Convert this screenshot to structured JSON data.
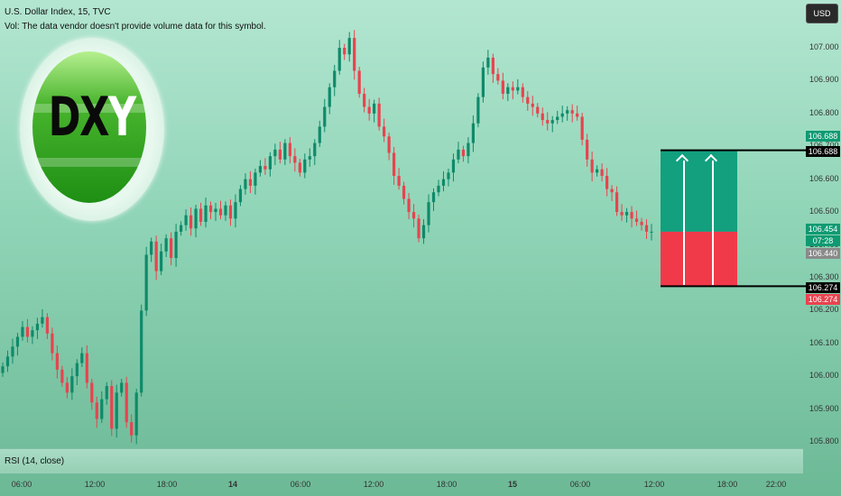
{
  "header": {
    "symbol_line": "U.S. Dollar Index, 15, TVC",
    "volume_note": "Vol: The data vendor doesn't provide volume data for this symbol."
  },
  "currency_button": "USD",
  "logo": {
    "letters": [
      "D",
      "X",
      "Y"
    ]
  },
  "rsi": {
    "label": "RSI (14, close)"
  },
  "price_tags": {
    "target_top": "106.688",
    "target": "106.688",
    "last": "106.454",
    "countdown": "07:28",
    "current": "106.440",
    "stop": "106.274",
    "stop_bottom": "106.274"
  },
  "colors": {
    "up": "#0f8a6a",
    "down": "#e8434f",
    "target_zone": "#12a07f",
    "stop_zone": "#f03a4a"
  },
  "chart_data": {
    "type": "candlestick",
    "y_ticks": [
      "107.000",
      "106.900",
      "106.800",
      "106.700",
      "106.600",
      "106.500",
      "106.400",
      "106.300",
      "106.200",
      "106.100",
      "106.000",
      "105.900",
      "105.800"
    ],
    "x_ticks": [
      "06:00",
      "12:00",
      "18:00",
      "14",
      "06:00",
      "12:00",
      "18:00",
      "15",
      "06:00",
      "12:00",
      "18:00",
      "22:00"
    ],
    "ylim": [
      105.8,
      107.05
    ],
    "position": {
      "target": 106.688,
      "entry": 106.44,
      "stop": 106.274
    },
    "close": [
      106.03,
      106.06,
      106.09,
      106.12,
      106.15,
      106.12,
      106.14,
      106.16,
      106.18,
      106.13,
      106.07,
      106.02,
      105.98,
      105.95,
      106.0,
      106.04,
      106.07,
      105.98,
      105.92,
      105.87,
      105.93,
      105.97,
      105.84,
      105.95,
      105.98,
      105.86,
      105.82,
      105.95,
      106.2,
      106.37,
      106.41,
      106.32,
      106.38,
      106.42,
      106.36,
      106.44,
      106.46,
      106.49,
      106.45,
      106.51,
      106.47,
      106.52,
      106.5,
      106.51,
      106.49,
      106.52,
      106.48,
      106.53,
      106.57,
      106.6,
      106.58,
      106.62,
      106.64,
      106.63,
      106.67,
      106.69,
      106.66,
      106.71,
      106.67,
      106.65,
      106.62,
      106.66,
      106.67,
      106.71,
      106.76,
      106.82,
      106.88,
      106.93,
      107.0,
      106.98,
      107.03,
      106.93,
      106.86,
      106.82,
      106.8,
      106.83,
      106.76,
      106.73,
      106.68,
      106.61,
      106.58,
      106.54,
      106.5,
      106.48,
      106.42,
      106.46,
      106.53,
      106.56,
      106.58,
      106.6,
      106.62,
      106.66,
      106.69,
      106.67,
      106.71,
      106.77,
      106.85,
      106.94,
      106.97,
      106.92,
      106.9,
      106.86,
      106.88,
      106.87,
      106.88,
      106.85,
      106.83,
      106.82,
      106.8,
      106.78,
      106.77,
      106.78,
      106.79,
      106.8,
      106.81,
      106.8,
      106.79,
      106.72,
      106.66,
      106.62,
      106.63,
      106.61,
      106.57,
      106.56,
      106.5,
      106.49,
      106.5,
      106.48,
      106.47,
      106.46,
      106.44,
      106.44
    ]
  }
}
